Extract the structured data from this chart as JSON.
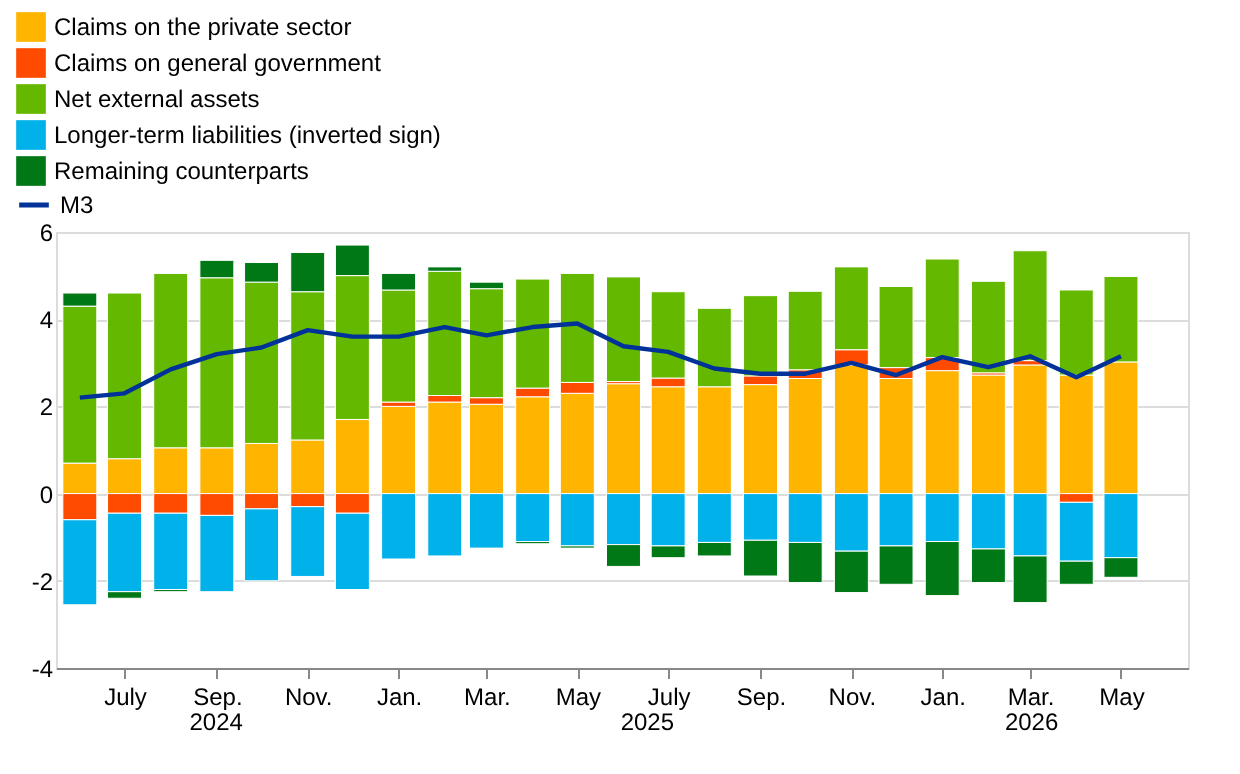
{
  "chart_data": {
    "type": "bar",
    "stacked": true,
    "x": [
      "2024-06",
      "2024-07",
      "2024-08",
      "2024-09",
      "2024-10",
      "2024-11",
      "2024-12",
      "2025-01",
      "2025-02",
      "2025-03",
      "2025-04",
      "2025-05",
      "2025-06",
      "2025-07",
      "2025-08",
      "2025-09",
      "2025-10",
      "2025-11",
      "2025-12",
      "2026-01",
      "2026-02",
      "2026-03",
      "2026-04",
      "2026-05"
    ],
    "xlim": [
      "2024-05-16",
      "2026-06-15"
    ],
    "xticks": [
      {
        "value": "2024-07",
        "label": "July"
      },
      {
        "value": "2024-09",
        "label": "Sep."
      },
      {
        "value": "2024-11",
        "label": "Nov."
      },
      {
        "value": "2025-01",
        "label": "Jan."
      },
      {
        "value": "2025-03",
        "label": "Mar."
      },
      {
        "value": "2025-05",
        "label": "May"
      },
      {
        "value": "2025-07",
        "label": "July"
      },
      {
        "value": "2025-09",
        "label": "Sep."
      },
      {
        "value": "2025-11",
        "label": "Nov."
      },
      {
        "value": "2026-01",
        "label": "Jan."
      },
      {
        "value": "2026-03",
        "label": "Mar."
      },
      {
        "value": "2026-05",
        "label": "May"
      }
    ],
    "ylim": [
      -4,
      6
    ],
    "yticks": [
      -4,
      -2,
      0,
      2,
      4,
      6
    ],
    "grid": "y",
    "legend": "top left",
    "annotations": [
      "2024",
      "2025",
      "2026"
    ],
    "series": [
      {
        "name": "Claims on the private sector",
        "color": "#ffb400",
        "values": [
          0.7,
          0.8,
          1.05,
          1.05,
          1.15,
          1.23,
          1.7,
          2.0,
          2.1,
          2.05,
          2.22,
          2.3,
          2.52,
          2.45,
          2.45,
          2.5,
          2.64,
          2.95,
          2.64,
          2.82,
          2.72,
          2.95,
          2.72,
          3.02
        ]
      },
      {
        "name": "Claims on general government",
        "color": "#ff4b00",
        "values": [
          -0.6,
          -0.45,
          -0.45,
          -0.5,
          -0.35,
          -0.3,
          -0.45,
          0.1,
          0.15,
          0.15,
          0.2,
          0.25,
          0.05,
          0.2,
          null,
          0.2,
          0.2,
          0.35,
          0.25,
          0.3,
          0.05,
          0.1,
          -0.2,
          null
        ]
      },
      {
        "name": "Net external assets",
        "color": "#65b800",
        "values": [
          3.6,
          3.8,
          4.0,
          3.9,
          3.7,
          3.4,
          3.3,
          2.57,
          2.85,
          2.5,
          2.5,
          2.5,
          2.4,
          1.98,
          1.8,
          1.84,
          1.8,
          1.9,
          1.86,
          2.26,
          2.1,
          2.52,
          1.95,
          1.96
        ]
      },
      {
        "name": "Longer-term liabilities (inverted sign)",
        "color": "#00b1ea",
        "values": [
          -1.95,
          -1.8,
          -1.75,
          -1.75,
          -1.65,
          -1.6,
          -1.75,
          -1.5,
          -1.43,
          -1.25,
          -1.1,
          -1.2,
          -1.17,
          -1.2,
          -1.12,
          -1.07,
          -1.12,
          -1.32,
          -1.2,
          -1.1,
          -1.27,
          -1.43,
          -1.35,
          -1.47
        ]
      },
      {
        "name": "Remaining counterparts",
        "color": "#007816",
        "values": [
          0.3,
          -0.15,
          -0.05,
          0.4,
          0.45,
          0.9,
          0.7,
          0.38,
          0.1,
          0.15,
          -0.05,
          -0.05,
          -0.5,
          -0.27,
          -0.31,
          -0.82,
          -0.92,
          -0.95,
          -0.88,
          -1.24,
          -0.77,
          -1.07,
          -0.53,
          -0.45
        ]
      },
      {
        "name": "M3",
        "type": "line",
        "color": "#003299",
        "values": [
          2.2,
          2.3,
          2.85,
          3.2,
          3.35,
          3.75,
          3.6,
          3.6,
          3.82,
          3.63,
          3.82,
          3.9,
          3.38,
          3.25,
          2.87,
          2.75,
          2.75,
          3.0,
          2.72,
          3.13,
          2.9,
          3.15,
          2.67,
          3.15
        ]
      }
    ]
  }
}
